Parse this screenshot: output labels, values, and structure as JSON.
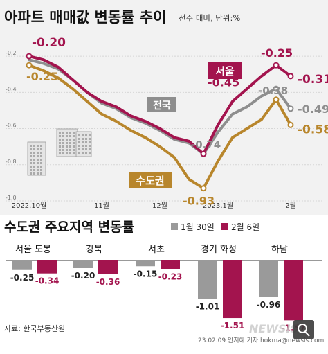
{
  "title": "아파트 매매값 변동률 추이",
  "subtitle": "전주 대비, 단위:%",
  "source": "자료: 한국부동산원",
  "credit": "23.02.09 안지혜 기자 hokma@newsis.com",
  "watermark": "NEWSIS",
  "colors": {
    "national": "#8e8e8e",
    "seoul": "#a3144e",
    "metro": "#b8862c",
    "bg_top": "#f2f2f2"
  },
  "chart_data": [
    {
      "type": "line",
      "title": "아파트 매매값 변동률 추이",
      "subtitle": "전주 대비, 단위:%",
      "ylim": [
        -1.0,
        -0.1
      ],
      "yticks": [
        "-0.2",
        "-0.4",
        "-0.6",
        "-0.8",
        "-1.0"
      ],
      "ytick_values": [
        -0.2,
        -0.4,
        -0.6,
        -0.8,
        -1.0
      ],
      "x_labels": [
        {
          "label": "2022.10월",
          "week": 0
        },
        {
          "label": "11월",
          "week": 5
        },
        {
          "label": "12월",
          "week": 9
        },
        {
          "label": "2023.1월",
          "week": 13
        },
        {
          "label": "2월",
          "week": 18
        }
      ],
      "grid": true,
      "series": [
        {
          "name": "전국",
          "color": "#8e8e8e",
          "x": [
            0,
            1,
            2,
            3,
            4,
            5,
            6,
            7,
            8,
            9,
            10,
            11,
            12,
            13,
            14,
            15,
            16,
            17,
            18
          ],
          "values": [
            -0.22,
            -0.24,
            -0.27,
            -0.33,
            -0.4,
            -0.46,
            -0.49,
            -0.54,
            -0.57,
            -0.61,
            -0.66,
            -0.68,
            -0.74,
            -0.62,
            -0.52,
            -0.48,
            -0.42,
            -0.38,
            -0.49
          ]
        },
        {
          "name": "서울",
          "color": "#a3144e",
          "x": [
            0,
            1,
            2,
            3,
            4,
            5,
            6,
            7,
            8,
            9,
            10,
            11,
            12,
            13,
            14,
            15,
            16,
            17,
            18
          ],
          "values": [
            -0.2,
            -0.22,
            -0.26,
            -0.33,
            -0.4,
            -0.45,
            -0.48,
            -0.53,
            -0.56,
            -0.6,
            -0.65,
            -0.67,
            -0.74,
            -0.58,
            -0.45,
            -0.38,
            -0.31,
            -0.25,
            -0.31
          ]
        },
        {
          "name": "수도권",
          "color": "#b8862c",
          "x": [
            0,
            1,
            2,
            3,
            4,
            5,
            6,
            7,
            8,
            9,
            10,
            11,
            12,
            13,
            14,
            15,
            16,
            17,
            18
          ],
          "values": [
            -0.25,
            -0.28,
            -0.32,
            -0.38,
            -0.45,
            -0.52,
            -0.56,
            -0.61,
            -0.65,
            -0.7,
            -0.76,
            -0.88,
            -0.93,
            -0.78,
            -0.65,
            -0.6,
            -0.55,
            -0.44,
            -0.58
          ]
        }
      ],
      "annotations": [
        {
          "text": "-0.20",
          "series": "서울",
          "x": 0,
          "y": -0.2
        },
        {
          "text": "-0.25",
          "series": "수도권",
          "x": 0,
          "y": -0.25
        },
        {
          "text": "-0.45",
          "series": "서울",
          "x": 14,
          "y": -0.45
        },
        {
          "text": "-0.74",
          "series": "전국",
          "x": 12,
          "y": -0.74
        },
        {
          "text": "-0.93",
          "series": "수도권",
          "x": 12,
          "y": -0.93
        },
        {
          "text": "-0.25",
          "series": "서울",
          "x": 17,
          "y": -0.25
        },
        {
          "text": "-0.38",
          "series": "전국",
          "x": 17,
          "y": -0.38
        },
        {
          "text": "-0.31",
          "series": "서울",
          "x": 18,
          "y": -0.31
        },
        {
          "text": "-0.49",
          "series": "전국",
          "x": 18,
          "y": -0.49
        },
        {
          "text": "-0.58",
          "series": "수도권",
          "x": 18,
          "y": -0.58
        }
      ]
    },
    {
      "type": "bar",
      "title": "수도권 주요지역 변동률",
      "categories": [
        "서울 도봉",
        "강북",
        "서초",
        "경기 화성",
        "하남"
      ],
      "ylim": [
        -1.7,
        0
      ],
      "series": [
        {
          "name": "1월 30일",
          "color": "#9a9a9a",
          "values": [
            -0.25,
            -0.2,
            -0.15,
            -1.01,
            -0.96
          ]
        },
        {
          "name": "2월 6일",
          "color": "#a3144e",
          "values": [
            -0.34,
            -0.36,
            -0.23,
            -1.51,
            -1.57
          ]
        }
      ],
      "value_labels": {
        "1월 30일": [
          "-0.25",
          "-0.20",
          "-0.15",
          "-1.01",
          "-0.96"
        ],
        "2월 6일": [
          "-0.34",
          "-0.36",
          "-0.23",
          "-1.51",
          "-1.57"
        ]
      }
    }
  ]
}
